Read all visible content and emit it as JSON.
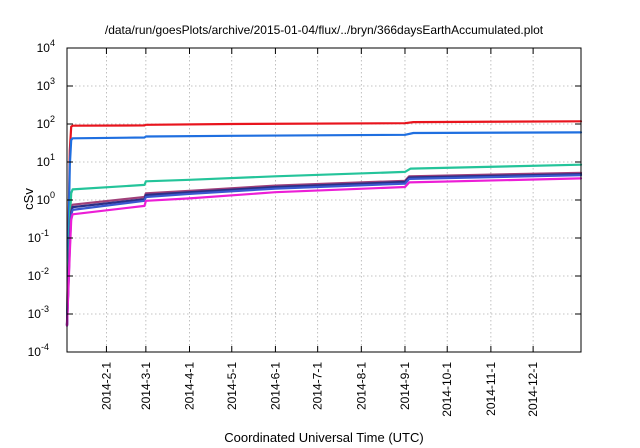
{
  "chart_data": {
    "type": "line",
    "title": "/data/run/goesPlots/archive/2015-01-04/flux/../bryn/366daysEarthAccumulated.plot",
    "xlabel": "Coordinated Universal Time (UTC)",
    "ylabel": "cSv",
    "y_scale": "log",
    "ylim": [
      0.0001,
      10000
    ],
    "xlim": [
      "2014-01-04",
      "2015-01-04"
    ],
    "grid": true,
    "y_ticks": [
      {
        "value": 0.0001,
        "base": "10",
        "exp": "-4"
      },
      {
        "value": 0.001,
        "base": "10",
        "exp": "-3"
      },
      {
        "value": 0.01,
        "base": "10",
        "exp": "-2"
      },
      {
        "value": 0.1,
        "base": "10",
        "exp": "-1"
      },
      {
        "value": 1,
        "base": "10",
        "exp": "0"
      },
      {
        "value": 10,
        "base": "10",
        "exp": "1"
      },
      {
        "value": 100,
        "base": "10",
        "exp": "2"
      },
      {
        "value": 1000,
        "base": "10",
        "exp": "3"
      },
      {
        "value": 10000,
        "base": "10",
        "exp": "4"
      }
    ],
    "x_ticks": [
      {
        "value": "2014-02-01",
        "label": "2014-2-1"
      },
      {
        "value": "2014-03-01",
        "label": "2014-3-1"
      },
      {
        "value": "2014-04-01",
        "label": "2014-4-1"
      },
      {
        "value": "2014-05-01",
        "label": "2014-5-1"
      },
      {
        "value": "2014-06-01",
        "label": "2014-6-1"
      },
      {
        "value": "2014-07-01",
        "label": "2014-7-1"
      },
      {
        "value": "2014-08-01",
        "label": "2014-8-1"
      },
      {
        "value": "2014-09-01",
        "label": "2014-9-1"
      },
      {
        "value": "2014-10-01",
        "label": "2014-10-1"
      },
      {
        "value": "2014-11-01",
        "label": "2014-11-1"
      },
      {
        "value": "2014-12-01",
        "label": "2014-12-1"
      }
    ],
    "series": [
      {
        "color": "#e8141d",
        "x": [
          "2014-01-04",
          "2014-01-06",
          "2014-01-07",
          "2014-01-08",
          "2014-02-28",
          "2014-03-01",
          "2014-05-01",
          "2014-09-01",
          "2014-09-07",
          "2015-01-04"
        ],
        "y": [
          0.0005,
          20,
          85,
          90,
          92,
          95,
          100,
          105,
          112,
          118
        ]
      },
      {
        "color": "#1f6fe0",
        "x": [
          "2014-01-04",
          "2014-01-06",
          "2014-01-07",
          "2014-01-08",
          "2014-02-28",
          "2014-03-01",
          "2014-05-01",
          "2014-09-01",
          "2014-09-07",
          "2015-01-04"
        ],
        "y": [
          0.0005,
          8,
          38,
          42,
          44,
          47,
          49,
          52,
          58,
          60
        ]
      },
      {
        "color": "#24c49a",
        "x": [
          "2014-01-04",
          "2014-01-06",
          "2014-01-07",
          "2014-01-08",
          "2014-02-28",
          "2014-03-01",
          "2014-04-01",
          "2014-06-01",
          "2014-09-01",
          "2014-09-05",
          "2015-01-04"
        ],
        "y": [
          0.0005,
          0.3,
          1.5,
          1.9,
          2.5,
          3.1,
          3.4,
          4.2,
          5.5,
          6.7,
          8.5
        ]
      },
      {
        "color": "#a0407a",
        "x": [
          "2014-01-04",
          "2014-01-06",
          "2014-01-07",
          "2014-01-08",
          "2014-02-28",
          "2014-03-01",
          "2014-04-01",
          "2014-06-01",
          "2014-09-01",
          "2014-09-04",
          "2015-01-04"
        ],
        "y": [
          0.0005,
          0.1,
          0.5,
          0.75,
          1.2,
          1.5,
          1.75,
          2.4,
          3.2,
          4.2,
          5.2
        ]
      },
      {
        "color": "#2b2f86",
        "x": [
          "2014-01-04",
          "2014-01-06",
          "2014-01-07",
          "2014-01-08",
          "2014-02-28",
          "2014-03-01",
          "2014-04-01",
          "2014-06-01",
          "2014-09-01",
          "2014-09-04",
          "2015-01-04"
        ],
        "y": [
          0.0005,
          0.08,
          0.45,
          0.65,
          1.05,
          1.35,
          1.6,
          2.2,
          3.0,
          3.9,
          4.8
        ]
      },
      {
        "color": "#3a58d0",
        "x": [
          "2014-01-04",
          "2014-01-06",
          "2014-01-07",
          "2014-01-08",
          "2014-02-28",
          "2014-03-01",
          "2014-04-01",
          "2014-06-01",
          "2014-09-01",
          "2014-09-04",
          "2015-01-04"
        ],
        "y": [
          0.0005,
          0.06,
          0.4,
          0.55,
          0.95,
          1.2,
          1.45,
          2.0,
          2.7,
          3.6,
          4.5
        ]
      },
      {
        "color": "#ec1ed6",
        "x": [
          "2014-01-04",
          "2014-01-06",
          "2014-01-07",
          "2014-01-08",
          "2014-02-28",
          "2014-03-01",
          "2014-04-01",
          "2014-06-01",
          "2014-09-01",
          "2014-09-04",
          "2015-01-04"
        ],
        "y": [
          0.0005,
          0.04,
          0.3,
          0.42,
          0.7,
          0.95,
          1.1,
          1.6,
          2.2,
          2.9,
          3.7
        ]
      }
    ]
  }
}
